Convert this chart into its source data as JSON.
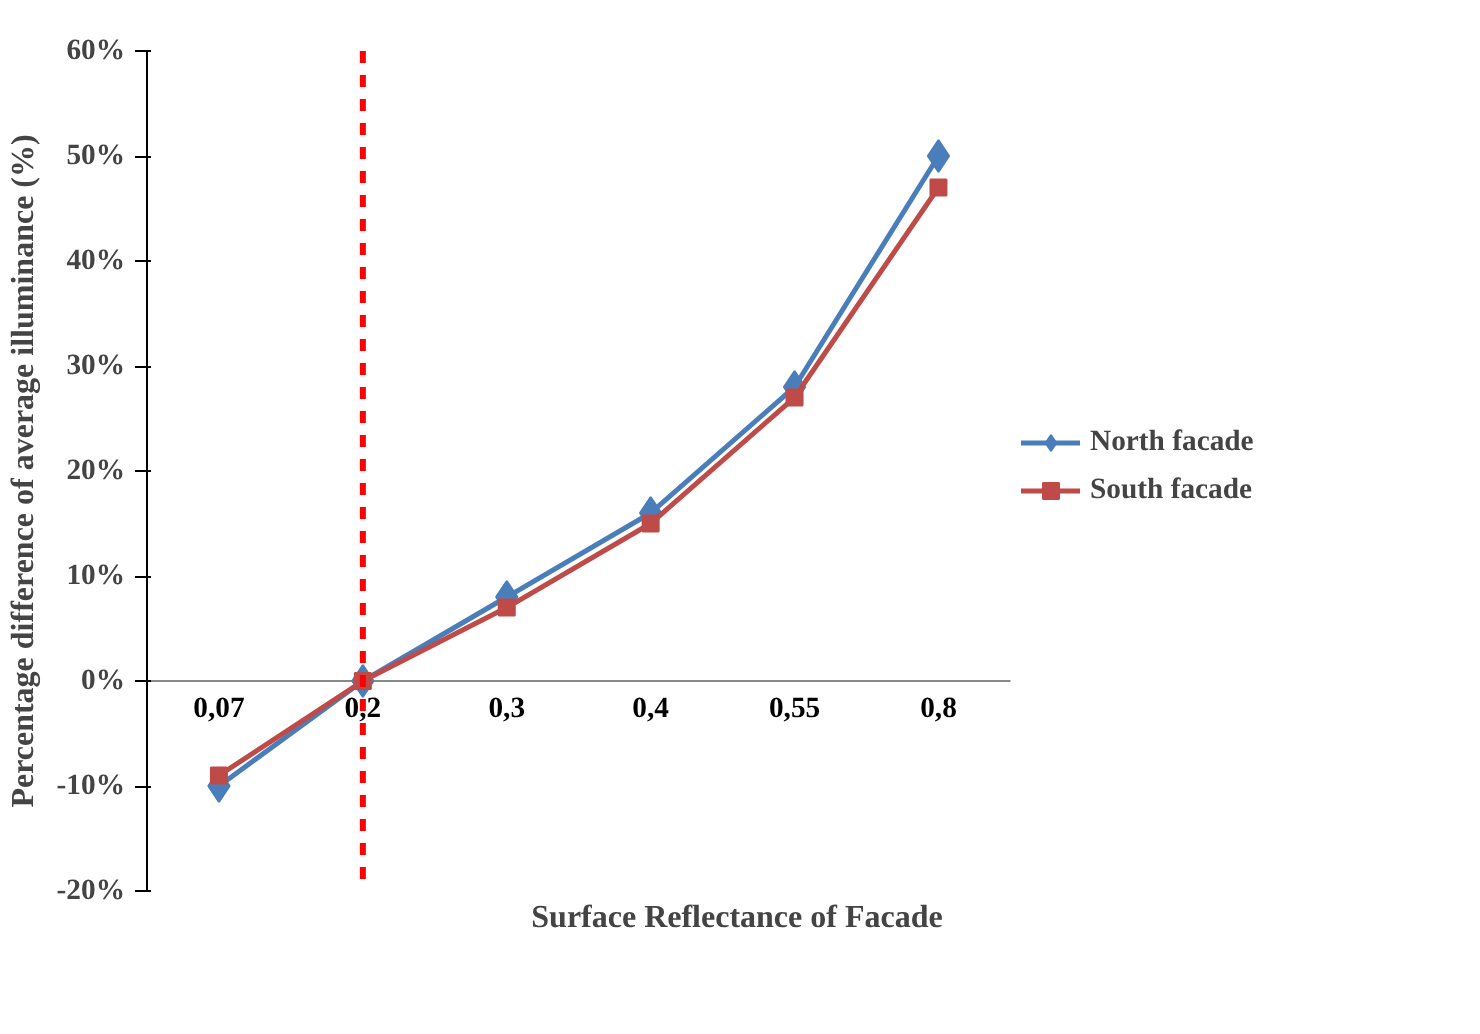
{
  "chart_data": {
    "type": "line",
    "xlabel": "Surface Reflectance of Facade",
    "ylabel": "Percentage difference of average illuminance (%)",
    "categories": [
      "0,07",
      "0,2",
      "0,3",
      "0,4",
      "0,55",
      "0,8"
    ],
    "series": [
      {
        "name": "North facade",
        "color": "#4a7ebb",
        "marker": "diamond",
        "values": [
          -10,
          0,
          8,
          16,
          28,
          50
        ]
      },
      {
        "name": "South facade",
        "color": "#be4b48",
        "marker": "square",
        "values": [
          -9,
          0,
          7,
          15,
          27,
          47
        ]
      }
    ],
    "ylim": [
      -20,
      60
    ],
    "yticks": [
      {
        "value": -20,
        "label": "-20%"
      },
      {
        "value": -10,
        "label": "-10%"
      },
      {
        "value": 0,
        "label": "0%"
      },
      {
        "value": 10,
        "label": "10%"
      },
      {
        "value": 20,
        "label": "20%"
      },
      {
        "value": 30,
        "label": "30%"
      },
      {
        "value": 40,
        "label": "40%"
      },
      {
        "value": 50,
        "label": "50%"
      },
      {
        "value": 60,
        "label": "60%"
      }
    ],
    "ref_lines": [
      {
        "axis": "x",
        "value": "0,2",
        "color": "#ff0000",
        "line_style": "dashed"
      }
    ],
    "grid": false,
    "legend": "right",
    "line_style": "solid"
  }
}
